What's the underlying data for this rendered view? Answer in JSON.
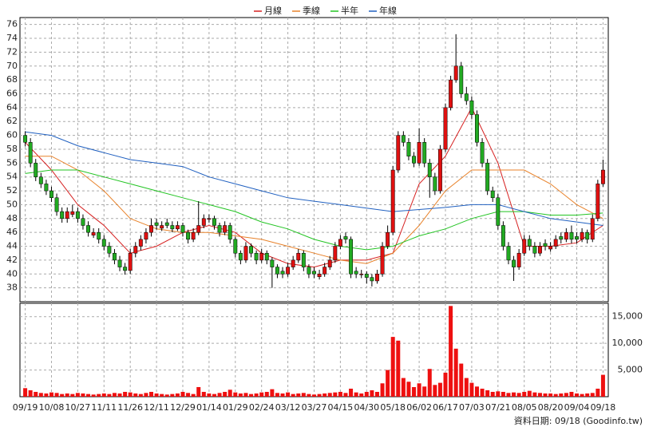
{
  "chart_data": {
    "type": "candlestick",
    "legend": [
      {
        "name": "月線",
        "color": "#d62020"
      },
      {
        "name": "季線",
        "color": "#e8822a"
      },
      {
        "name": "半年",
        "color": "#22c422"
      },
      {
        "name": "年線",
        "color": "#2060c0"
      }
    ],
    "footer": "資料日期: 09/18 (Goodinfo.tw)",
    "up_color": "#e01010",
    "down_color": "#22aa22",
    "volume_color": "#ee1010",
    "ylim": [
      36,
      77
    ],
    "yticks": [
      38,
      40,
      42,
      44,
      46,
      48,
      50,
      52,
      54,
      56,
      58,
      60,
      62,
      64,
      66,
      68,
      70,
      72,
      74,
      76
    ],
    "y2lim": [
      0,
      17500
    ],
    "y2ticks": [
      {
        "value": 5000,
        "label": "5,000"
      },
      {
        "value": 10000,
        "label": "10,000"
      },
      {
        "value": 15000,
        "label": "15,000"
      }
    ],
    "xlim": [
      -1,
      111
    ],
    "xticks": [
      {
        "value": 0,
        "label": "09/19"
      },
      {
        "value": 5,
        "label": "10/08"
      },
      {
        "value": 10,
        "label": "10/27"
      },
      {
        "value": 15,
        "label": "11/11"
      },
      {
        "value": 20,
        "label": "11/26"
      },
      {
        "value": 25,
        "label": "12/11"
      },
      {
        "value": 30,
        "label": "12/29"
      },
      {
        "value": 35,
        "label": "01/14"
      },
      {
        "value": 40,
        "label": "01/29"
      },
      {
        "value": 45,
        "label": "02/24"
      },
      {
        "value": 50,
        "label": "03/12"
      },
      {
        "value": 55,
        "label": "03/27"
      },
      {
        "value": 60,
        "label": "04/15"
      },
      {
        "value": 65,
        "label": "04/30"
      },
      {
        "value": 70,
        "label": "05/18"
      },
      {
        "value": 75,
        "label": "06/02"
      },
      {
        "value": 80,
        "label": "06/17"
      },
      {
        "value": 85,
        "label": "07/03"
      },
      {
        "value": 90,
        "label": "07/21"
      },
      {
        "value": 95,
        "label": "08/05"
      },
      {
        "value": 100,
        "label": "08/20"
      },
      {
        "value": 105,
        "label": "09/04"
      },
      {
        "value": 110,
        "label": "09/18"
      }
    ],
    "candles": [
      [
        60,
        60.6,
        58.4,
        59
      ],
      [
        59,
        59.6,
        55.4,
        56
      ],
      [
        56,
        56.6,
        53.4,
        54
      ],
      [
        54,
        54.6,
        52.4,
        53
      ],
      [
        53,
        53.6,
        51.4,
        52
      ],
      [
        52,
        52.6,
        50.4,
        51
      ],
      [
        51,
        51.6,
        48.4,
        49
      ],
      [
        49,
        49.6,
        47.4,
        48
      ],
      [
        48,
        49.6,
        47.4,
        49
      ],
      [
        48.6,
        50,
        48.2,
        49
      ],
      [
        49,
        49.6,
        47.4,
        48
      ],
      [
        48,
        48.6,
        46.4,
        47
      ],
      [
        47,
        47.6,
        45.4,
        46
      ],
      [
        45.6,
        46.6,
        45.2,
        46
      ],
      [
        46,
        46.6,
        44.4,
        45
      ],
      [
        45,
        45.6,
        43.4,
        44
      ],
      [
        44,
        44.6,
        42.4,
        43
      ],
      [
        43,
        43.6,
        41.4,
        42
      ],
      [
        42,
        42.6,
        40.4,
        41
      ],
      [
        41,
        41.6,
        39.9,
        40.5
      ],
      [
        40.5,
        43.6,
        40,
        43
      ],
      [
        43,
        44.6,
        42.4,
        44
      ],
      [
        44,
        45.6,
        43.4,
        45
      ],
      [
        45,
        46.6,
        44.4,
        46
      ],
      [
        46,
        48,
        45.4,
        47
      ],
      [
        47.4,
        48,
        46.4,
        47
      ],
      [
        46.6,
        47.6,
        46.2,
        47
      ],
      [
        47.4,
        48,
        46.6,
        47
      ],
      [
        47,
        47.6,
        46,
        46.5
      ],
      [
        46.5,
        47.6,
        46.2,
        47
      ],
      [
        47,
        47.4,
        45.4,
        46
      ],
      [
        46,
        46.4,
        44.4,
        45
      ],
      [
        45,
        46.6,
        44.6,
        46
      ],
      [
        46,
        50.5,
        45.6,
        47
      ],
      [
        47,
        48.6,
        46.6,
        48
      ],
      [
        48,
        48.6,
        47.4,
        48
      ],
      [
        48,
        48.4,
        46.4,
        47
      ],
      [
        47,
        47.4,
        45.4,
        46
      ],
      [
        46,
        47.6,
        45.6,
        47
      ],
      [
        47,
        47.4,
        44.4,
        45
      ],
      [
        45,
        45.4,
        42.4,
        43
      ],
      [
        43,
        43.4,
        41.4,
        42
      ],
      [
        42,
        44.6,
        41.6,
        44
      ],
      [
        44,
        44.4,
        42.4,
        43
      ],
      [
        43,
        43.4,
        41.4,
        42
      ],
      [
        42,
        43.6,
        41.6,
        43
      ],
      [
        43,
        43.4,
        41.4,
        42
      ],
      [
        42,
        42.4,
        38,
        41
      ],
      [
        41,
        41.4,
        39.4,
        40
      ],
      [
        40.4,
        41,
        39.4,
        40
      ],
      [
        40,
        41.6,
        39.6,
        41
      ],
      [
        41,
        42.6,
        40.6,
        42
      ],
      [
        42,
        43.6,
        41.6,
        43
      ],
      [
        43,
        43.4,
        40.4,
        41
      ],
      [
        41,
        41.4,
        39.4,
        40
      ],
      [
        40.4,
        41,
        39.4,
        40
      ],
      [
        39.6,
        40.6,
        39.2,
        40
      ],
      [
        40,
        41.6,
        39.6,
        41
      ],
      [
        41,
        42.6,
        40.6,
        42
      ],
      [
        42,
        44.6,
        41.6,
        44
      ],
      [
        44,
        45.6,
        43.6,
        45
      ],
      [
        45.4,
        46,
        44.4,
        45
      ],
      [
        45,
        45.4,
        39.4,
        40
      ],
      [
        40.4,
        41,
        39.4,
        40
      ],
      [
        40,
        40.6,
        39.4,
        40
      ],
      [
        40,
        40.4,
        38.6,
        39.5
      ],
      [
        39.5,
        40,
        38.2,
        39
      ],
      [
        39,
        40.6,
        38.6,
        40
      ],
      [
        40,
        44.6,
        39.6,
        44
      ],
      [
        44,
        47,
        43.6,
        46
      ],
      [
        46,
        55.6,
        45.6,
        55
      ],
      [
        55,
        60.6,
        54.6,
        60
      ],
      [
        60,
        60.6,
        58.4,
        59
      ],
      [
        59,
        59.6,
        56.4,
        57
      ],
      [
        57,
        57.6,
        55.4,
        56
      ],
      [
        56,
        61,
        55.6,
        59
      ],
      [
        59,
        59.6,
        55.4,
        56
      ],
      [
        56,
        56.6,
        51,
        54
      ],
      [
        54,
        54.6,
        51.4,
        52
      ],
      [
        52,
        58.6,
        51.6,
        58
      ],
      [
        58,
        64.6,
        57.6,
        64
      ],
      [
        64,
        68.6,
        63.6,
        68
      ],
      [
        68,
        74.6,
        67.6,
        70
      ],
      [
        70,
        70.6,
        65.4,
        66
      ],
      [
        66,
        67,
        64.4,
        65
      ],
      [
        65,
        65.6,
        62.4,
        63
      ],
      [
        63,
        63.6,
        58.4,
        59
      ],
      [
        59,
        59.6,
        55.4,
        56
      ],
      [
        56,
        56.6,
        51.4,
        52
      ],
      [
        52,
        52.6,
        50.4,
        51
      ],
      [
        51,
        51.6,
        46.4,
        47
      ],
      [
        47,
        47.6,
        43.4,
        44
      ],
      [
        44,
        44.6,
        41.4,
        42
      ],
      [
        42,
        42.6,
        39,
        41
      ],
      [
        41,
        43.6,
        40.6,
        43
      ],
      [
        43,
        45.6,
        42.6,
        45
      ],
      [
        45,
        45.6,
        43.4,
        44
      ],
      [
        44,
        44.6,
        42.4,
        43
      ],
      [
        43,
        44.6,
        42.6,
        44
      ],
      [
        44.4,
        45,
        43.4,
        44
      ],
      [
        43.6,
        44.6,
        43.2,
        44
      ],
      [
        44,
        45.6,
        43.6,
        45
      ],
      [
        45.4,
        46,
        44.4,
        45
      ],
      [
        45,
        46.6,
        44.6,
        46
      ],
      [
        46,
        47,
        44.4,
        45
      ],
      [
        45.4,
        46,
        44.4,
        45
      ],
      [
        45,
        46.6,
        44.6,
        46
      ],
      [
        46,
        46.4,
        44.4,
        45
      ],
      [
        45,
        48.6,
        44.6,
        48
      ],
      [
        48,
        53.6,
        47.6,
        53
      ],
      [
        53,
        56.5,
        52.6,
        55
      ]
    ],
    "volume": [
      1600,
      1200,
      900,
      700,
      600,
      800,
      700,
      500,
      600,
      500,
      700,
      600,
      500,
      400,
      500,
      600,
      500,
      700,
      600,
      900,
      800,
      600,
      500,
      700,
      900,
      600,
      500,
      400,
      500,
      600,
      900,
      700,
      500,
      1800,
      900,
      600,
      500,
      700,
      900,
      1300,
      800,
      600,
      700,
      500,
      600,
      800,
      900,
      1400,
      700,
      600,
      800,
      500,
      600,
      700,
      500,
      400,
      500,
      600,
      700,
      800,
      900,
      700,
      1500,
      800,
      600,
      900,
      1200,
      900,
      2500,
      5000,
      11200,
      10500,
      3500,
      2800,
      1800,
      2500,
      1900,
      5200,
      2200,
      2600,
      4500,
      17000,
      9000,
      6200,
      3500,
      2600,
      1900,
      1500,
      1200,
      900,
      1000,
      900,
      700,
      800,
      700,
      900,
      1100,
      800,
      700,
      600,
      600,
      500,
      600,
      700,
      900,
      600,
      500,
      600,
      700,
      1500,
      4100
    ],
    "ma_x": [
      0,
      5,
      10,
      15,
      20,
      25,
      30,
      35,
      40,
      45,
      50,
      55,
      60,
      65,
      70,
      75,
      80,
      85,
      90,
      95,
      100,
      105,
      110
    ],
    "series": [
      {
        "name": "月線",
        "color": "#d62020",
        "values": [
          59,
          55,
          50,
          47,
          43,
          44,
          46,
          47,
          46,
          43,
          41.5,
          41,
          42,
          42,
          43,
          53,
          57,
          64,
          56,
          44,
          44,
          44.5,
          47
        ]
      },
      {
        "name": "季線",
        "color": "#e8822a",
        "values": [
          57,
          57,
          55,
          52,
          48,
          46.5,
          46,
          46,
          45.5,
          45,
          44,
          43,
          42,
          41.5,
          43,
          47,
          52,
          55,
          55,
          55,
          53,
          50,
          48
        ]
      },
      {
        "name": "半年",
        "color": "#22c422",
        "values": [
          54.5,
          55,
          55,
          54,
          53,
          52,
          51,
          50,
          49,
          47.5,
          46.5,
          45,
          44,
          43.5,
          44,
          45.5,
          46.5,
          48,
          49,
          49,
          48.5,
          48.5,
          48.8
        ]
      },
      {
        "name": "年線",
        "color": "#2060c0",
        "values": [
          60.5,
          60,
          58.5,
          57.5,
          56.5,
          56,
          55.5,
          54,
          53,
          52,
          51,
          50.5,
          50,
          49.5,
          49,
          49.3,
          49.6,
          50,
          50,
          49,
          48,
          47.5,
          47
        ]
      }
    ]
  }
}
